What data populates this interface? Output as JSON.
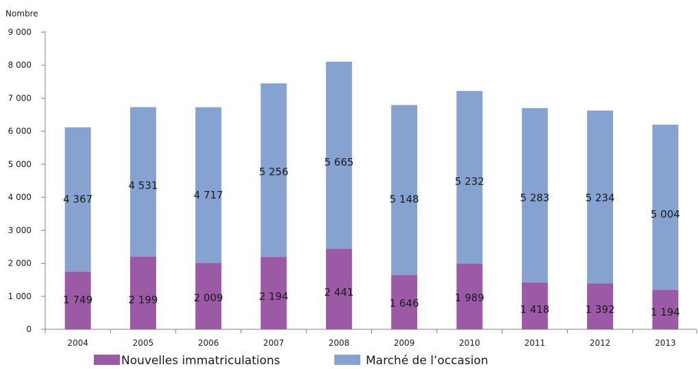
{
  "chart_data": {
    "type": "bar",
    "stacked": true,
    "y_unit_label": "Nombre",
    "categories": [
      "2004",
      "2005",
      "2006",
      "2007",
      "2008",
      "2009",
      "2010",
      "2011",
      "2012",
      "2013"
    ],
    "series": [
      {
        "name": "Nouvelles immatriculations",
        "color": "#9b59a6",
        "values": [
          1749,
          2199,
          2009,
          2194,
          2441,
          1646,
          1989,
          1418,
          1392,
          1194
        ],
        "labels": [
          "1 749",
          "2 199",
          "2 009",
          "2 194",
          "2 441",
          "1 646",
          "1 989",
          "1 418",
          "1 392",
          "1 194"
        ]
      },
      {
        "name": "Marché de l’occasion",
        "color": "#86a2d0",
        "values": [
          4367,
          4531,
          4717,
          5256,
          5665,
          5148,
          5232,
          5283,
          5234,
          5004
        ],
        "labels": [
          "4 367",
          "4 531",
          "4 717",
          "5 256",
          "5 665",
          "5 148",
          "5 232",
          "5 283",
          "5 234",
          "5 004"
        ]
      }
    ],
    "ylim": [
      0,
      9000
    ],
    "yticks": [
      0,
      1000,
      2000,
      3000,
      4000,
      5000,
      6000,
      7000,
      8000,
      9000
    ],
    "ytick_labels": [
      "0",
      "1 000",
      "2 000",
      "3 000",
      "4 000",
      "5 000",
      "6 000",
      "7 000",
      "8 000",
      "9 000"
    ],
    "grid": false,
    "legend_position": "bottom"
  }
}
